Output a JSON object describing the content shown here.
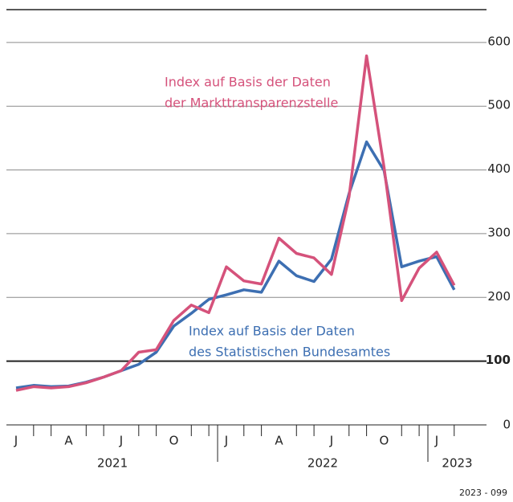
{
  "chart_data": {
    "type": "line",
    "categories": [
      "J",
      null,
      null,
      "A",
      null,
      null,
      "J",
      null,
      null,
      "O",
      null,
      null,
      "J",
      null,
      null,
      "A",
      null,
      null,
      "J",
      null,
      null,
      "O",
      null,
      null,
      "J",
      null
    ],
    "year_groups": [
      {
        "label": "2021",
        "months": 12
      },
      {
        "label": "2022",
        "months": 12
      },
      {
        "label": "2023",
        "months": 2
      }
    ],
    "series": [
      {
        "name": [
          "Index auf Basis der Daten",
          "des Statistischen Bundesamtes"
        ],
        "color": "#3d6fb2",
        "values": [
          58,
          62,
          60,
          61,
          67,
          75,
          85,
          95,
          114,
          155,
          175,
          197,
          204,
          212,
          208,
          257,
          234,
          225,
          260,
          363,
          444,
          399,
          248,
          257,
          264,
          212
        ]
      },
      {
        "name": [
          "Index auf Basis der Daten",
          "der Markttransparenzstelle"
        ],
        "color": "#d5527b",
        "values": [
          54,
          60,
          58,
          60,
          66,
          75,
          85,
          114,
          118,
          164,
          188,
          176,
          248,
          226,
          221,
          293,
          269,
          262,
          236,
          358,
          579,
          404,
          195,
          246,
          271,
          219
        ]
      }
    ],
    "ylim": [
      0,
      620
    ],
    "yticks": [
      0,
      100,
      200,
      300,
      400,
      500,
      600
    ],
    "grid": true,
    "highlight_y": 100,
    "source_id": "2023 - 099"
  }
}
